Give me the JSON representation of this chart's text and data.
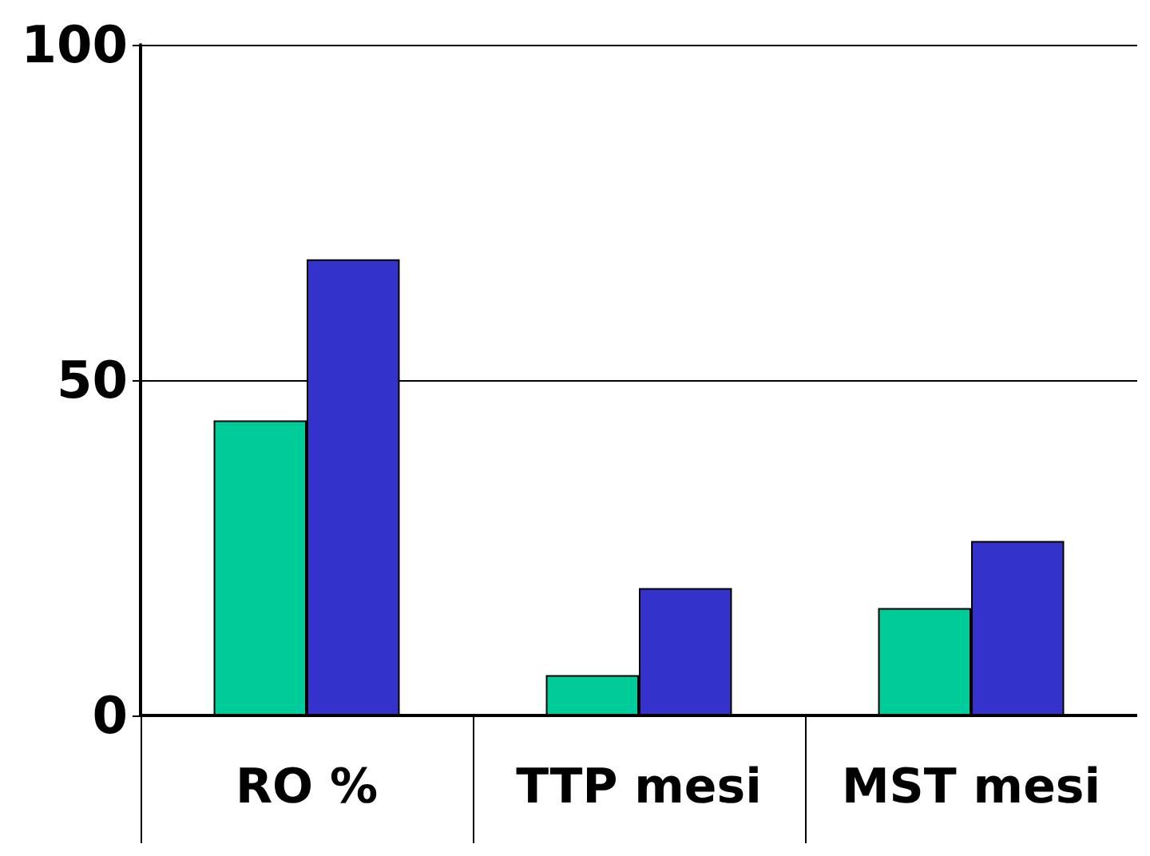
{
  "chart_data": {
    "type": "bar",
    "categories": [
      "RO %",
      "TTP mesi",
      "MST mesi"
    ],
    "series": [
      {
        "color": "#00cc99",
        "values": [
          44,
          6,
          16
        ]
      },
      {
        "color": "#3333cc",
        "values": [
          68,
          19,
          26
        ]
      }
    ],
    "ylim": [
      0,
      100
    ],
    "yticks": [
      0,
      50,
      100
    ],
    "grid": "y"
  }
}
